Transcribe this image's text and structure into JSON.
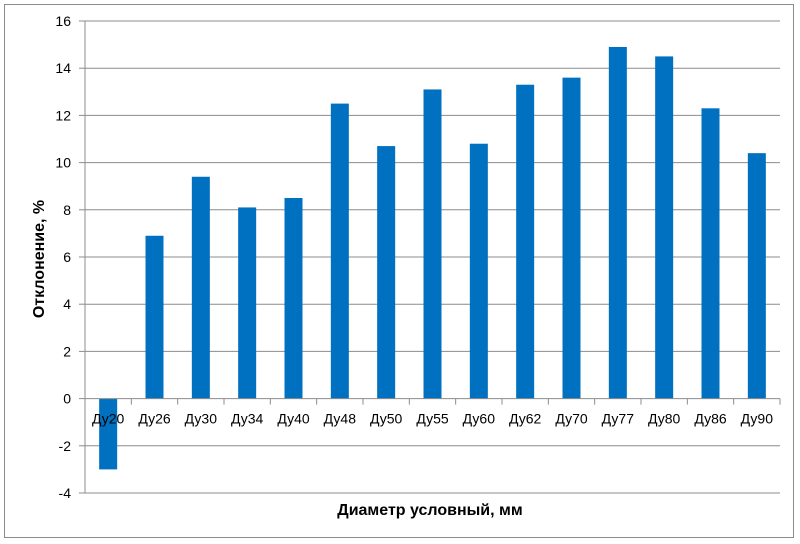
{
  "chart_data": {
    "type": "bar",
    "title": "",
    "xlabel": "Диаметр условный, мм",
    "ylabel": "Отклонение, %",
    "ylim": [
      -4,
      16
    ],
    "yticks": [
      -4,
      -2,
      0,
      2,
      4,
      6,
      8,
      10,
      12,
      14,
      16
    ],
    "grid": true,
    "legend": "none",
    "bar_color": "#0070C0",
    "categories": [
      "Ду20",
      "Ду26",
      "Ду30",
      "Ду34",
      "Ду40",
      "Ду48",
      "Ду50",
      "Ду55",
      "Ду60",
      "Ду62",
      "Ду70",
      "Ду77",
      "Ду80",
      "Ду86",
      "Ду90"
    ],
    "values": [
      -3.0,
      6.9,
      9.4,
      8.1,
      8.5,
      12.5,
      10.7,
      13.1,
      10.8,
      13.3,
      13.6,
      14.9,
      14.5,
      12.3,
      10.4
    ]
  }
}
